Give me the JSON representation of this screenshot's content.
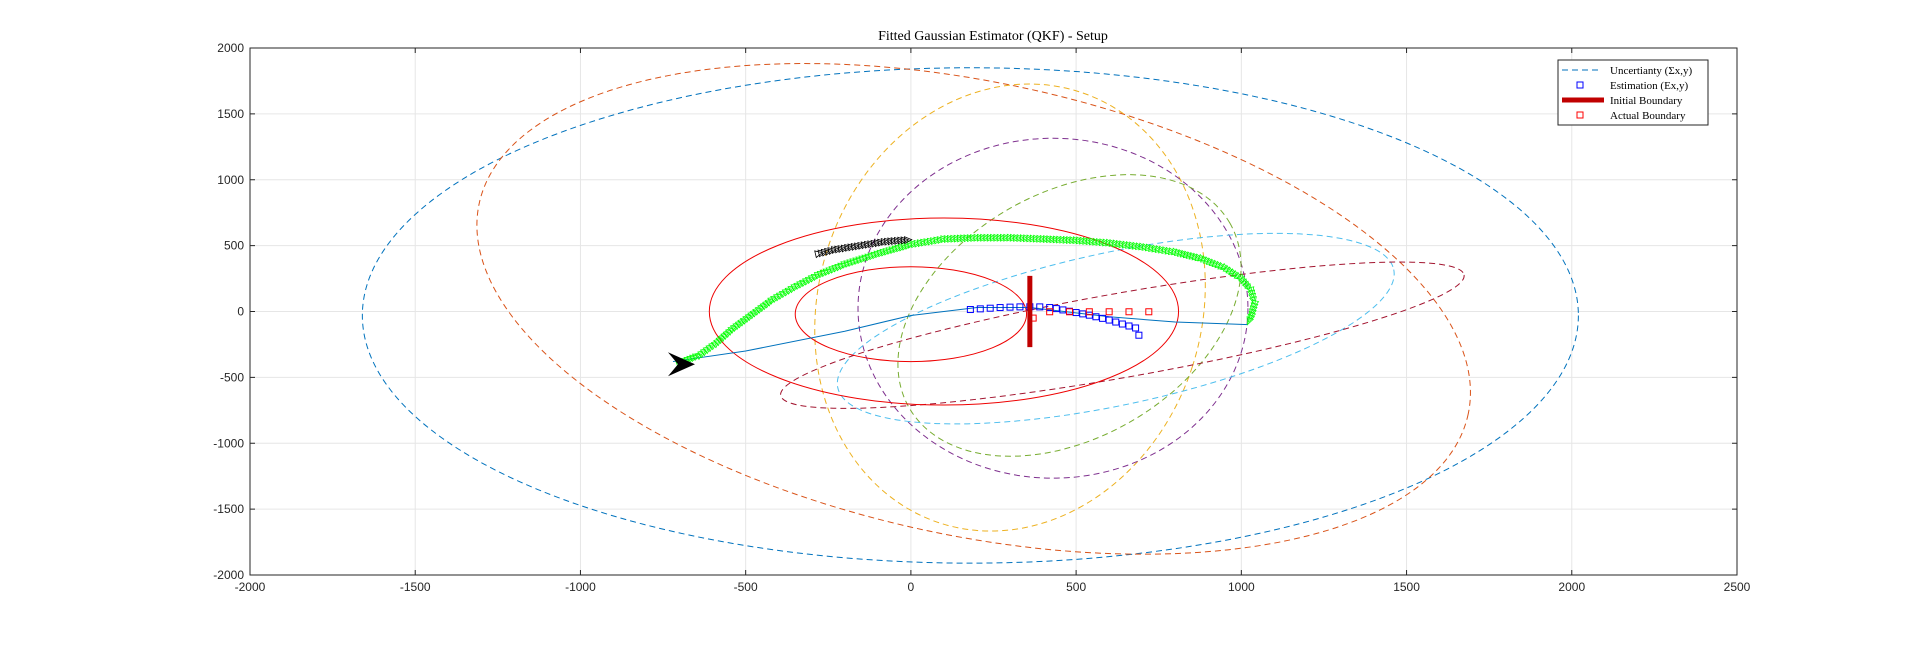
{
  "chart_data": {
    "type": "scatter",
    "title": "Fitted Gaussian Estimator (QKF) - Setup",
    "xlabel": "",
    "ylabel": "",
    "xlim": [
      -2000,
      2500
    ],
    "ylim": [
      -2000,
      2000
    ],
    "xticks": [
      -2000,
      -1500,
      -1000,
      -500,
      0,
      500,
      1000,
      1500,
      2000,
      2500
    ],
    "yticks": [
      -2000,
      -1500,
      -1000,
      -500,
      0,
      500,
      1000,
      1500,
      2000
    ],
    "xtick_labels": [
      "-2000",
      "-1500",
      "-1000",
      "-500",
      "0",
      "500",
      "1000",
      "1500",
      "2000",
      "2500"
    ],
    "ytick_labels": [
      "-2000",
      "-1500",
      "-1000",
      "-500",
      "0",
      "500",
      "1000",
      "1500",
      "2000"
    ],
    "grid": true,
    "legend_position": "top-right",
    "legend": [
      {
        "label": "Uncertianty (Σx,y)",
        "symbol": "dashed-line",
        "color": "#0072BD"
      },
      {
        "label": "Estimation (Ex,y)",
        "symbol": "square",
        "color": "#0000FF"
      },
      {
        "label": "Initial Boundary",
        "symbol": "thick-line",
        "color": "#C00000"
      },
      {
        "label": "Actual Boundary",
        "symbol": "square",
        "color": "#FF0000"
      }
    ],
    "uncertainty_ellipses": [
      {
        "color": "#0072BD",
        "cx": 180,
        "cy": -30,
        "rx": 1840,
        "ry": 1880,
        "angle": 0
      },
      {
        "color": "#D95319",
        "cx": 190,
        "cy": 20,
        "rx": 1530,
        "ry": 1720,
        "angle": -12
      },
      {
        "color": "#EDB120",
        "cx": 300,
        "cy": 30,
        "rx": 580,
        "ry": 1720,
        "angle": -18
      },
      {
        "color": "#7E2F8E",
        "cx": 430,
        "cy": 25,
        "rx": 590,
        "ry": 1290,
        "angle": 0
      },
      {
        "color": "#77AC30",
        "cx": 480,
        "cy": -30,
        "rx": 560,
        "ry": 930,
        "angle": 30
      },
      {
        "color": "#4DBEEE",
        "cx": 620,
        "cy": -130,
        "rx": 860,
        "ry": 580,
        "angle": 12
      },
      {
        "color": "#A2142F",
        "cx": 640,
        "cy": -180,
        "rx": 1050,
        "ry": 320,
        "angle": 10
      }
    ],
    "initial_ellipses": [
      {
        "color": "#EE0000",
        "cx": 0,
        "cy": -20,
        "rx": 350,
        "ry": 360,
        "angle": 0
      },
      {
        "color": "#EE0000",
        "cx": 100,
        "cy": 0,
        "rx": 710,
        "ry": 710,
        "angle": 0
      }
    ],
    "trajectory_line": {
      "color": "#0072BD",
      "points": [
        [
          -720,
          -380
        ],
        [
          -500,
          -300
        ],
        [
          -200,
          -150
        ],
        [
          0,
          -30
        ],
        [
          200,
          30
        ],
        [
          360,
          30
        ],
        [
          600,
          -40
        ],
        [
          800,
          -80
        ],
        [
          1020,
          -100
        ]
      ]
    },
    "green_trajectory": {
      "color": "#00FF00",
      "points": [
        [
          -700,
          -390
        ],
        [
          -640,
          -330
        ],
        [
          -590,
          -240
        ],
        [
          -540,
          -130
        ],
        [
          -480,
          -20
        ],
        [
          -420,
          90
        ],
        [
          -350,
          190
        ],
        [
          -280,
          280
        ],
        [
          -200,
          360
        ],
        [
          -100,
          440
        ],
        [
          0,
          510
        ],
        [
          100,
          550
        ],
        [
          200,
          560
        ],
        [
          300,
          560
        ],
        [
          400,
          550
        ],
        [
          500,
          540
        ],
        [
          600,
          520
        ],
        [
          700,
          490
        ],
        [
          800,
          450
        ],
        [
          880,
          400
        ],
        [
          950,
          330
        ],
        [
          1000,
          250
        ],
        [
          1030,
          160
        ],
        [
          1040,
          60
        ],
        [
          1030,
          -30
        ],
        [
          1020,
          -90
        ]
      ]
    },
    "black_trajectory": {
      "color": "#000000",
      "points": [
        [
          -280,
          440
        ],
        [
          -230,
          470
        ],
        [
          -180,
          490
        ],
        [
          -130,
          510
        ],
        [
          -80,
          530
        ],
        [
          -30,
          540
        ],
        [
          0,
          545
        ]
      ]
    },
    "estimation_points": [
      [
        180,
        15
      ],
      [
        210,
        20
      ],
      [
        240,
        25
      ],
      [
        270,
        30
      ],
      [
        300,
        33
      ],
      [
        330,
        35
      ],
      [
        360,
        36
      ],
      [
        390,
        35
      ],
      [
        420,
        30
      ],
      [
        440,
        22
      ],
      [
        460,
        12
      ],
      [
        480,
        2
      ],
      [
        500,
        -8
      ],
      [
        520,
        -18
      ],
      [
        540,
        -28
      ],
      [
        560,
        -40
      ],
      [
        580,
        -52
      ],
      [
        600,
        -65
      ],
      [
        620,
        -80
      ],
      [
        640,
        -95
      ],
      [
        660,
        -110
      ],
      [
        680,
        -125
      ],
      [
        690,
        -180
      ]
    ],
    "actual_boundary_points": [
      [
        370,
        -50
      ],
      [
        420,
        -2
      ],
      [
        480,
        -2
      ],
      [
        540,
        -2
      ],
      [
        600,
        -2
      ],
      [
        660,
        -2
      ],
      [
        720,
        -2
      ]
    ],
    "initial_boundary_bar": {
      "x": 360,
      "y1": -270,
      "y2": 270,
      "color": "#C00000"
    },
    "start_marker": {
      "x": -720,
      "y": -400,
      "color": "#000000"
    }
  }
}
